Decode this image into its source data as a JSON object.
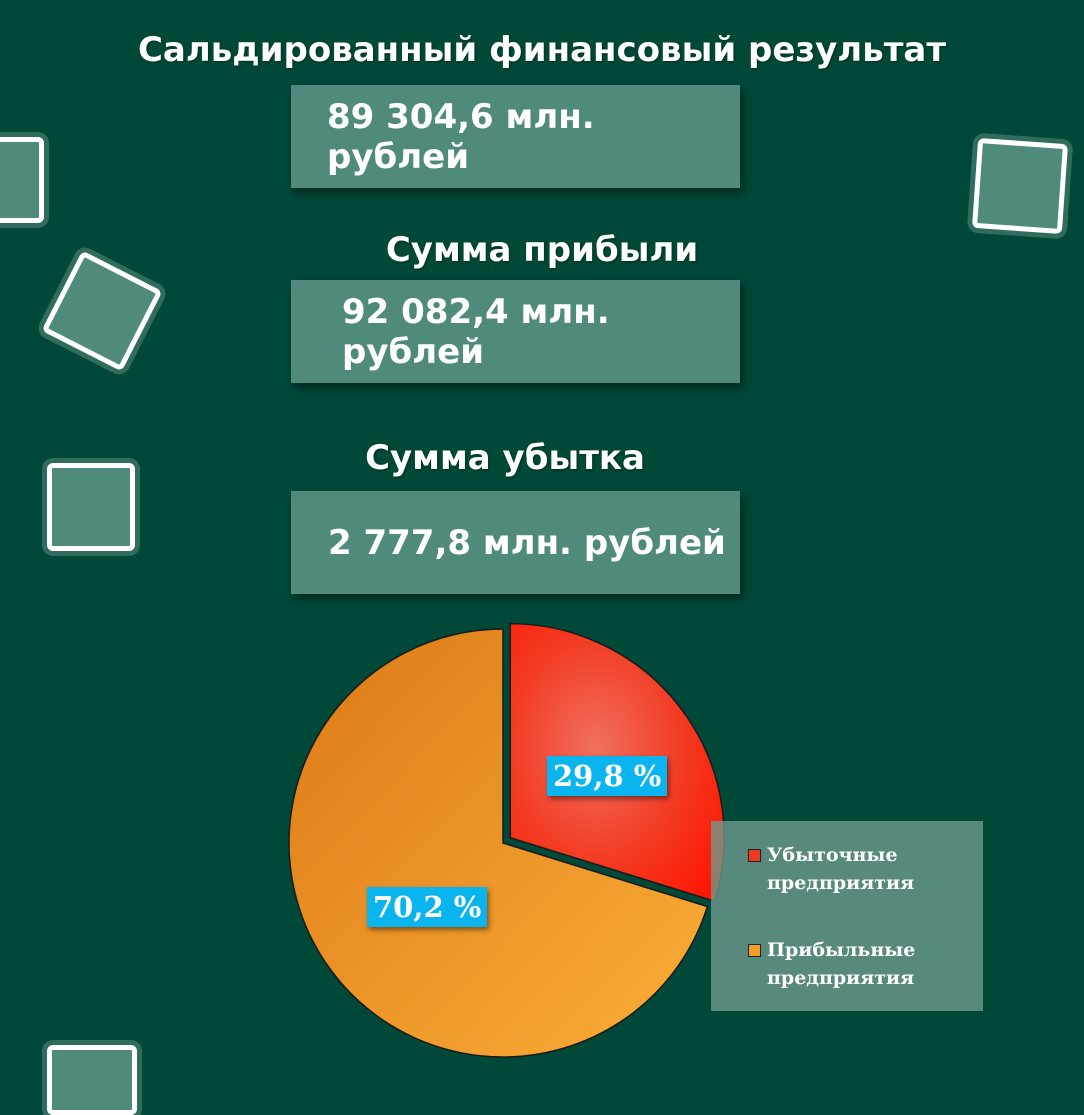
{
  "header": {
    "title": "Сальдированный финансовый результат",
    "value": "89 304,6 млн. рублей"
  },
  "profit": {
    "title": "Сумма прибыли",
    "value": "92 082,4 млн. рублей"
  },
  "loss": {
    "title": "Сумма убытка",
    "value": "2 777,8 млн. рублей"
  },
  "colors": {
    "background": "#004838",
    "box": "#4f8a7c",
    "loss_slice": "#ff2a10",
    "profit_slice": "#f39c28",
    "data_label": "#0ab4ee"
  },
  "chart_data": {
    "type": "pie",
    "title": "",
    "exploded": "Убыточные предприятия",
    "legend_position": "right",
    "series": [
      {
        "values": [
          29.8,
          70.2
        ],
        "labels": [
          "29,8 %",
          "70,2 %"
        ]
      }
    ],
    "categories": [
      "Убыточные предприятия",
      "Прибыльные предприятия"
    ],
    "legend": [
      {
        "label": "Убыточные предприятия",
        "color": "#f03a1e"
      },
      {
        "label": "Прибыльные предприятия",
        "color": "#f39c28"
      }
    ]
  }
}
